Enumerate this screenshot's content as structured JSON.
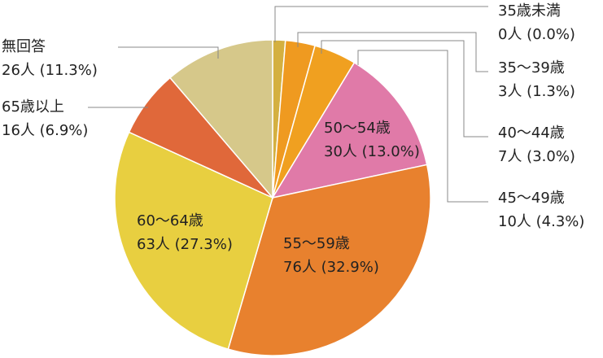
{
  "chart_data": {
    "type": "pie",
    "categories": [
      "35歳未満",
      "35～39歳",
      "40～44歳",
      "45～49歳",
      "50～54歳",
      "55～59歳",
      "60～64歳",
      "65歳以上",
      "無回答"
    ],
    "values": [
      0,
      3,
      7,
      10,
      30,
      76,
      63,
      16,
      26
    ],
    "value_labels": [
      "0人 (0.0%)",
      "3人 (1.3%)",
      "7人 (3.0%)",
      "10人 (4.3%)",
      "30人 (13.0%)",
      "76人 (32.9%)",
      "63人 (27.3%)",
      "16人 (6.9%)",
      "26人 (11.3%)"
    ],
    "colors": [
      "#e0304a",
      "#d4b040",
      "#ef9a20",
      "#f0a020",
      "#e07aa8",
      "#e8812e",
      "#e8cf40",
      "#e0683a",
      "#d6c88a"
    ]
  }
}
